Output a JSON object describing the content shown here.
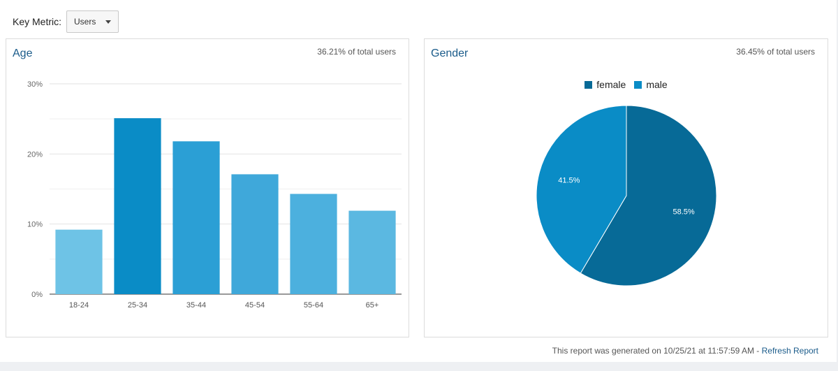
{
  "toolbar": {
    "key_metric_label": "Key Metric:",
    "selected_metric": "Users"
  },
  "chart_data": [
    {
      "type": "bar",
      "title": "Age",
      "subtitle": "36.21% of total users",
      "categories": [
        "18-24",
        "25-34",
        "35-44",
        "45-54",
        "55-64",
        "65+"
      ],
      "values": [
        9.2,
        25.1,
        21.8,
        17.1,
        14.3,
        11.9
      ],
      "ylim": [
        0,
        30
      ],
      "yticks": [
        0,
        10,
        20,
        30
      ],
      "ytick_labels": [
        "0%",
        "10%",
        "20%",
        "30%"
      ],
      "grid": true,
      "colors": [
        "#6ec3e6",
        "#0a8cc6",
        "#2b9fd5",
        "#3fa8da",
        "#4cb0de",
        "#5bb8e1"
      ]
    },
    {
      "type": "pie",
      "title": "Gender",
      "subtitle": "36.45% of total users",
      "legend_position": "top",
      "labels": [
        "female",
        "male"
      ],
      "values": [
        58.5,
        41.5
      ],
      "value_labels": [
        "58.5%",
        "41.5%"
      ],
      "colors": [
        "#076a97",
        "#0a8cc6"
      ]
    }
  ],
  "footer": {
    "generated_text": "This report was generated on 10/25/21 at 11:57:59 AM - ",
    "refresh_link": "Refresh Report"
  }
}
